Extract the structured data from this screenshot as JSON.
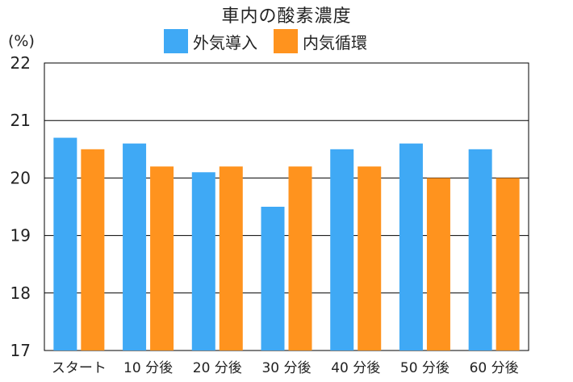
{
  "chart_data": {
    "type": "bar",
    "title": "車内の酸素濃度",
    "ylabel": "(%)",
    "xlabel": "",
    "ylim": [
      17,
      22
    ],
    "yticks": [
      17,
      18,
      19,
      20,
      21,
      22
    ],
    "grid": true,
    "legend_position": "top",
    "categories": [
      "スタート",
      "10 分後",
      "20 分後",
      "30 分後",
      "40 分後",
      "50 分後",
      "60 分後"
    ],
    "series": [
      {
        "name": "外気導入",
        "color": "#3fa9f5",
        "values": [
          20.7,
          20.6,
          20.1,
          19.5,
          20.5,
          20.6,
          20.5
        ]
      },
      {
        "name": "内気循環",
        "color": "#ff931e",
        "values": [
          20.5,
          20.2,
          20.2,
          20.2,
          20.2,
          20.0,
          20.0
        ]
      }
    ]
  }
}
